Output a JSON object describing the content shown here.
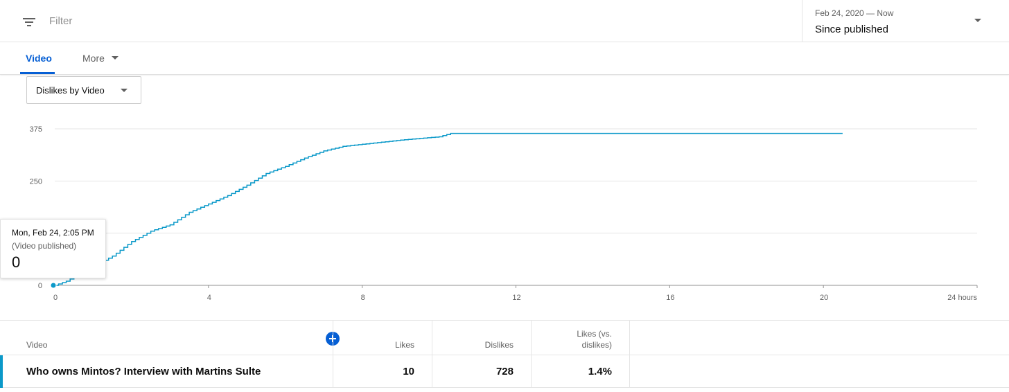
{
  "filter_bar": {
    "placeholder": "Filter",
    "date_range": "Feb 24, 2020 — Now",
    "date_label": "Since published"
  },
  "tabs": [
    {
      "label": "Video",
      "active": true
    },
    {
      "label": "More",
      "active": false
    }
  ],
  "metric_select": {
    "value": "Dislikes by Video"
  },
  "colors": {
    "accent": "#065fd4",
    "line": "#0b99c9"
  },
  "chart_data": {
    "type": "line",
    "x_unit": "hours",
    "x_ticks": [
      "0",
      "4",
      "8",
      "12",
      "16",
      "20",
      "24 hours"
    ],
    "y_ticks": [
      "0",
      "250",
      "375"
    ],
    "xlim": [
      0,
      24
    ],
    "ylim": [
      0,
      375
    ],
    "grid": true,
    "series": [
      {
        "x": [
          0,
          0.3,
          0.6,
          1.0,
          1.5,
          2.0,
          2.5,
          3.0,
          3.5,
          4.0,
          4.5,
          5.0,
          5.5,
          6.0,
          6.5,
          7.0,
          7.5,
          8.0,
          8.5,
          9.0,
          9.5,
          10.0,
          10.3,
          20.5
        ],
        "y": [
          0,
          10,
          25,
          45,
          70,
          105,
          130,
          145,
          175,
          195,
          215,
          240,
          268,
          285,
          305,
          322,
          333,
          338,
          343,
          348,
          352,
          356,
          364,
          364
        ]
      }
    ]
  },
  "tooltip": {
    "date": "Mon, Feb 24, 2:05 PM",
    "note": "(Video published)",
    "value": "0"
  },
  "table": {
    "headers": {
      "video": "Video",
      "likes": "Likes",
      "dislikes": "Dislikes",
      "ratio_line1": "Likes (vs.",
      "ratio_line2": "dislikes)"
    },
    "rows": [
      {
        "video": "Who owns Mintos? Interview with Martins Sulte",
        "likes": "10",
        "dislikes": "728",
        "ratio": "1.4%"
      }
    ]
  }
}
